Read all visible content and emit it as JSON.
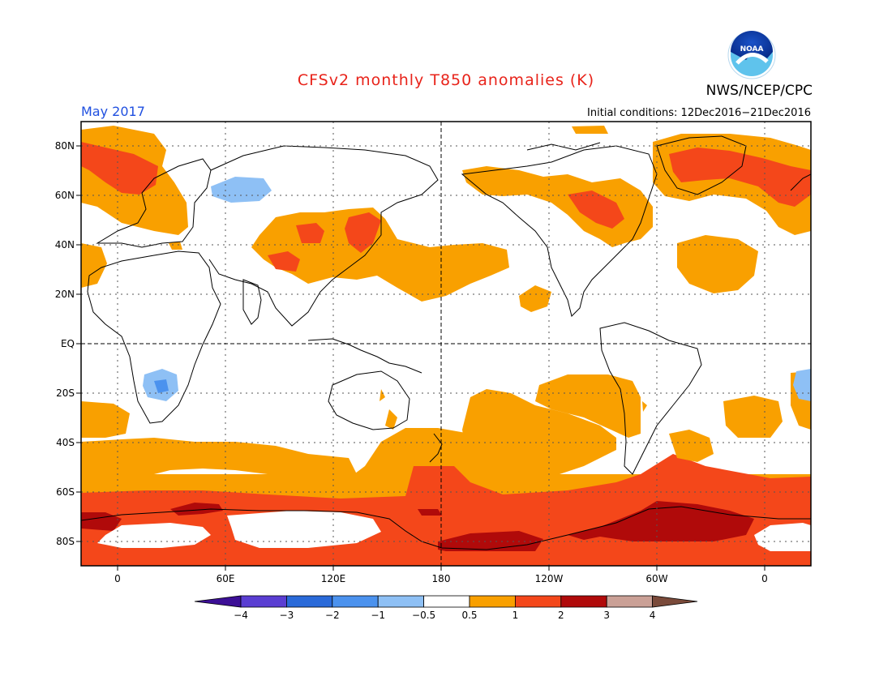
{
  "title": "CFSv2 monthly T850 anomalies (K)",
  "organization": "NWS/NCEP/CPC",
  "logo_text": "NOAA",
  "period": "May 2017",
  "initial_conditions": "Initial conditions: 12Dec2016−21Dec2016",
  "lat_labels": [
    "80N",
    "60N",
    "40N",
    "20N",
    "EQ",
    "20S",
    "40S",
    "60S",
    "80S"
  ],
  "lon_labels": [
    "0",
    "60E",
    "120E",
    "180",
    "120W",
    "60W",
    "0"
  ],
  "colorbar": {
    "labels": [
      "−4",
      "−3",
      "−2",
      "−1",
      "−0.5",
      "0.5",
      "1",
      "2",
      "3",
      "4"
    ],
    "colors": [
      "#3c0f96",
      "#5a3ed2",
      "#2a6ad9",
      "#4b92ee",
      "#8ec0f5",
      "#ffffff",
      "#f9a000",
      "#f4471a",
      "#b00a0a",
      "#caa096",
      "#7a4a3a"
    ]
  },
  "colors": {
    "title": "#e8231a",
    "period": "#2050e0",
    "anom_0_5_1": "#f9a000",
    "anom_1_2": "#f4471a",
    "anom_2_3": "#b00a0a",
    "anom_neg_0_5_1": "#8ec0f5",
    "anom_neg_1_2": "#4b92ee"
  }
}
